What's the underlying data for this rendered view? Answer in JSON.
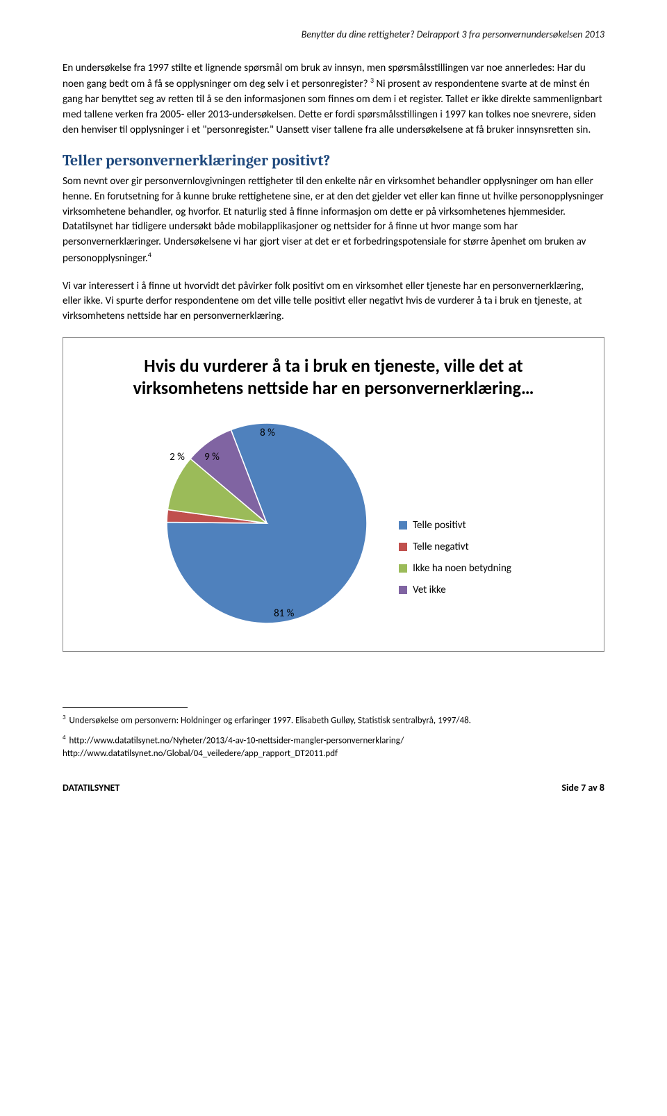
{
  "header": "Benytter du dine rettigheter? Delrapport 3 fra personvernundersøkelsen 2013",
  "paragraph1_a": "En undersøkelse fra 1997 stilte et lignende spørsmål om bruk av innsyn, men spørsmålsstillingen var noe annerledes: Har du noen gang bedt om å få se opplysninger om deg selv i et personregister? ",
  "paragraph1_b": " Ni prosent av respondentene svarte at de minst én gang har benyttet seg av retten til å se den informasjonen som finnes om dem i et register. Tallet er ikke direkte sammenlignbart med tallene verken fra 2005- eller 2013-undersøkelsen. Dette er fordi spørsmålsstillingen i 1997 kan tolkes noe snevrere, siden den henviser til opplysninger i et \"personregister.\" Uansett viser tallene fra alle undersøkelsene at få bruker innsynsretten sin.",
  "heading": "Teller personvernerklæringer positivt?",
  "paragraph2_a": "Som nevnt over gir personvernlovgivningen rettigheter til den enkelte når en virksomhet behandler opplysninger om han eller henne. En forutsetning for å kunne bruke rettighetene sine, er at den det gjelder vet eller kan finne ut hvilke personopplysninger virksomhetene behandler, og hvorfor. Et naturlig sted å finne informasjon om dette er på virksomhetenes hjemmesider. Datatilsynet har tidligere undersøkt både mobilapplikasjoner og nettsider for å finne ut hvor mange som har personvernerklæringer. Undersøkelsene vi har gjort viser at det er et forbedringspotensiale for større åpenhet om bruken av personopplysninger.",
  "paragraph3": "Vi var interessert i å finne ut hvorvidt det påvirker folk positivt om en virksomhet eller tjeneste har en personvernerklæring, eller ikke. Vi spurte derfor respondentene om det ville telle positivt eller negativt hvis de vurderer å ta i bruk en tjeneste, at virksomhetens nettside har en personvernerklæring.",
  "chart": {
    "type": "pie",
    "title": "Hvis du vurderer å ta i bruk en tjeneste, ville det at virksomhetens nettside har en personvernerklæring…",
    "background_color": "#ffffff",
    "border_color": "#888888",
    "title_fontsize": 26,
    "legend_fontsize": 15,
    "label_fontsize": 15,
    "slices": [
      {
        "label": "Telle positivt",
        "value": 81,
        "display": "81 %",
        "color": "#4f81bd"
      },
      {
        "label": "Telle negativt",
        "value": 2,
        "display": "2 %",
        "color": "#c0504d"
      },
      {
        "label": "Ikke ha noen betydning",
        "value": 9,
        "display": "9 %",
        "color": "#9bbb59"
      },
      {
        "label": "Vet ikke",
        "value": 8,
        "display": "8 %",
        "color": "#8064a2"
      }
    ]
  },
  "footnote3": "Undersøkelse om personvern: Holdninger og erfaringer 1997. Elisabeth Gulløy, Statistisk sentralbyrå, 1997/48.",
  "footnote4_a": "http://www.datatilsynet.no/Nyheter/2013/4-av-10-nettsider-mangler-personvernerklaring/",
  "footnote4_b": "http://www.datatilsynet.no/Global/04_veiledere/app_rapport_DT2011.pdf",
  "footer_left": "DATATILSYNET",
  "footer_right": "Side 7 av 8"
}
